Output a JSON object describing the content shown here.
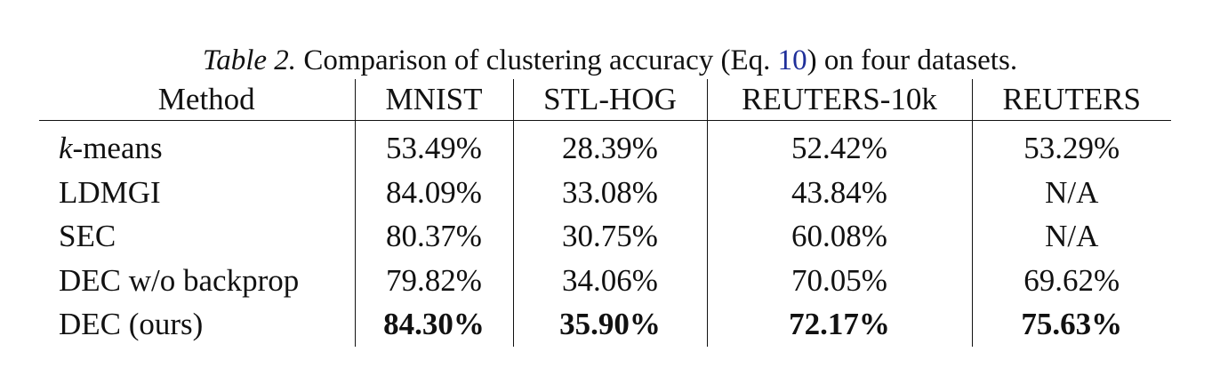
{
  "caption": {
    "label": "Table 2.",
    "text_before_ref": " Comparison of clustering accuracy (Eq. ",
    "ref": "10",
    "text_after_ref": ") on four datasets."
  },
  "table": {
    "headers": [
      "Method",
      "MNIST",
      "STL-HOG",
      "REUTERS-10k",
      "REUTERS"
    ],
    "rows": [
      {
        "method_var": "k",
        "method_rest": "-means",
        "values": [
          "53.49%",
          "28.39%",
          "52.42%",
          "53.29%"
        ]
      },
      {
        "method": "LDMGI",
        "values": [
          "84.09%",
          "33.08%",
          "43.84%",
          "N/A"
        ]
      },
      {
        "method": "SEC",
        "values": [
          "80.37%",
          "30.75%",
          "60.08%",
          "N/A"
        ]
      },
      {
        "method": "DEC w/o backprop",
        "values": [
          "79.82%",
          "34.06%",
          "70.05%",
          "69.62%"
        ]
      },
      {
        "method": "DEC (ours)",
        "values": [
          "84.30%",
          "35.90%",
          "72.17%",
          "75.63%"
        ],
        "bold": true
      }
    ]
  }
}
